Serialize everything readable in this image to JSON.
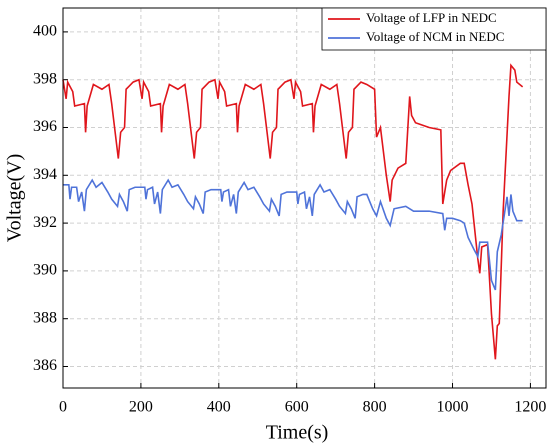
{
  "chart_data": {
    "type": "line",
    "xlabel": "Time(s)",
    "ylabel": "Voltage(V)",
    "xlim": [
      0,
      1240
    ],
    "ylim": [
      385.1,
      401
    ],
    "xticks": [
      0,
      200,
      400,
      600,
      800,
      1000,
      1200
    ],
    "yticks": [
      386,
      388,
      390,
      392,
      394,
      396,
      398,
      400
    ],
    "grid": true,
    "legend": "upper right",
    "series": [
      {
        "name": "Voltage of LFP in NEDC",
        "color": "#e0161c",
        "x": [
          0,
          8,
          12,
          25,
          30,
          55,
          58,
          62,
          78,
          100,
          118,
          125,
          142,
          148,
          158,
          162,
          180,
          195,
          203,
          207,
          220,
          225,
          250,
          253,
          257,
          273,
          295,
          313,
          320,
          337,
          343,
          353,
          357,
          375,
          390,
          398,
          402,
          415,
          420,
          445,
          448,
          452,
          468,
          490,
          508,
          515,
          532,
          538,
          548,
          552,
          570,
          585,
          593,
          597,
          610,
          615,
          640,
          643,
          647,
          663,
          685,
          703,
          710,
          727,
          733,
          743,
          747,
          765,
          780,
          800,
          805,
          815,
          830,
          840,
          845,
          860,
          880,
          890,
          895,
          905,
          940,
          970,
          975,
          985,
          995,
          1020,
          1030,
          1040,
          1050,
          1065,
          1070,
          1075,
          1090,
          1100,
          1110,
          1115,
          1120,
          1130,
          1145,
          1150,
          1160,
          1165,
          1180
        ],
        "values": [
          398,
          397.2,
          397.9,
          397.5,
          396.9,
          397.0,
          395.8,
          396.9,
          397.8,
          397.6,
          397.8,
          397.0,
          394.7,
          395.8,
          396.0,
          397.6,
          397.9,
          398,
          397.2,
          397.9,
          397.5,
          396.9,
          397.0,
          395.8,
          396.9,
          397.8,
          397.6,
          397.8,
          397.0,
          394.7,
          395.8,
          396.0,
          397.6,
          397.9,
          398,
          397.2,
          397.9,
          397.5,
          396.9,
          397.0,
          395.8,
          396.9,
          397.8,
          397.6,
          397.8,
          397.0,
          394.7,
          395.8,
          396.0,
          397.6,
          397.9,
          398,
          397.2,
          397.9,
          397.5,
          396.9,
          397.0,
          395.8,
          396.9,
          397.8,
          397.6,
          397.8,
          397.0,
          394.7,
          395.8,
          396.0,
          397.6,
          397.9,
          397.8,
          397.6,
          395.6,
          396.0,
          394.0,
          392.9,
          393.8,
          394.3,
          394.5,
          397.3,
          396.5,
          396.2,
          396.0,
          395.9,
          392.8,
          393.8,
          394.2,
          394.5,
          394.5,
          393.6,
          392.8,
          390.5,
          389.9,
          391.0,
          391.1,
          388.2,
          386.3,
          387.7,
          387.8,
          392.5,
          397.3,
          398.6,
          398.4,
          397.9,
          397.7
        ]
      },
      {
        "name": "Voltage of NCM in NEDC",
        "color": "#4f73d9",
        "x": [
          0,
          15,
          18,
          22,
          35,
          40,
          48,
          55,
          60,
          75,
          85,
          100,
          115,
          125,
          140,
          145,
          155,
          165,
          170,
          185,
          195,
          210,
          213,
          217,
          230,
          235,
          243,
          250,
          255,
          270,
          280,
          295,
          310,
          320,
          335,
          340,
          350,
          360,
          365,
          380,
          390,
          405,
          408,
          412,
          425,
          430,
          438,
          445,
          450,
          465,
          475,
          490,
          505,
          515,
          530,
          535,
          545,
          555,
          560,
          575,
          585,
          600,
          603,
          607,
          620,
          625,
          633,
          640,
          645,
          660,
          670,
          685,
          700,
          710,
          725,
          730,
          740,
          750,
          755,
          770,
          780,
          795,
          805,
          815,
          830,
          840,
          850,
          880,
          900,
          940,
          975,
          980,
          985,
          1000,
          1020,
          1030,
          1040,
          1055,
          1065,
          1070,
          1090,
          1100,
          1110,
          1115,
          1125,
          1140,
          1145,
          1150,
          1155,
          1165,
          1180
        ],
        "values": [
          393.6,
          393.6,
          393.0,
          393.5,
          393.5,
          392.9,
          393.3,
          392.5,
          393.4,
          393.8,
          393.5,
          393.7,
          393.3,
          393.0,
          392.7,
          393.2,
          392.9,
          392.5,
          393.4,
          393.5,
          393.5,
          393.5,
          393.0,
          393.4,
          393.5,
          392.8,
          393.3,
          392.4,
          393.4,
          393.8,
          393.5,
          393.6,
          393.2,
          392.9,
          392.6,
          393.1,
          392.8,
          392.4,
          393.3,
          393.4,
          393.4,
          393.4,
          392.9,
          393.3,
          393.4,
          392.7,
          393.2,
          392.4,
          393.3,
          393.7,
          393.4,
          393.5,
          393.1,
          392.8,
          392.5,
          393.0,
          392.7,
          392.3,
          393.2,
          393.3,
          393.3,
          393.3,
          392.8,
          393.2,
          393.3,
          392.6,
          393.1,
          392.3,
          393.2,
          393.6,
          393.3,
          393.4,
          393.0,
          392.7,
          392.4,
          392.9,
          392.6,
          392.2,
          393.1,
          393.2,
          393.2,
          392.6,
          392.3,
          392.9,
          392.2,
          391.9,
          392.6,
          392.7,
          392.5,
          392.5,
          392.4,
          391.7,
          392.2,
          392.2,
          392.1,
          392.0,
          391.4,
          390.9,
          390.6,
          391.2,
          391.2,
          389.6,
          389.2,
          390.8,
          391.5,
          393.1,
          392.3,
          393.2,
          392.5,
          392.1,
          392.1
        ]
      }
    ]
  }
}
